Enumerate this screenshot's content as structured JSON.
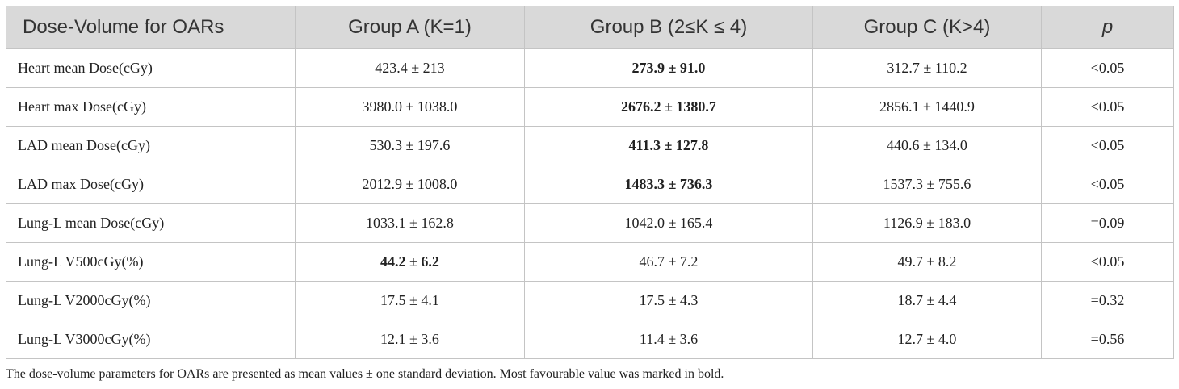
{
  "table": {
    "headers": [
      "Dose-Volume for OARs",
      "Group A (K=1)",
      "Group B (2≤K ≤ 4)",
      "Group C (K>4)",
      "p"
    ],
    "rows": [
      {
        "label": "Heart mean Dose(cGy)",
        "cells": [
          "423.4 ± 213",
          "273.9 ± 91.0",
          "312.7 ± 110.2",
          "<0.05"
        ],
        "bold_index": 1
      },
      {
        "label": "Heart max Dose(cGy)",
        "cells": [
          "3980.0 ± 1038.0",
          "2676.2 ± 1380.7",
          "2856.1 ± 1440.9",
          "<0.05"
        ],
        "bold_index": 1
      },
      {
        "label": "LAD mean Dose(cGy)",
        "cells": [
          "530.3 ± 197.6",
          "411.3 ± 127.8",
          "440.6 ± 134.0",
          "<0.05"
        ],
        "bold_index": 1
      },
      {
        "label": "LAD max Dose(cGy)",
        "cells": [
          "2012.9 ± 1008.0",
          "1483.3 ± 736.3",
          "1537.3 ± 755.6",
          "<0.05"
        ],
        "bold_index": 1
      },
      {
        "label": "Lung-L mean Dose(cGy)",
        "cells": [
          "1033.1 ± 162.8",
          "1042.0 ± 165.4",
          "1126.9 ± 183.0",
          "=0.09"
        ],
        "bold_index": null
      },
      {
        "label": "Lung-L V500cGy(%)",
        "cells": [
          "44.2 ± 6.2",
          "46.7 ± 7.2",
          "49.7 ± 8.2",
          "<0.05"
        ],
        "bold_index": 0
      },
      {
        "label": "Lung-L V2000cGy(%)",
        "cells": [
          "17.5 ± 4.1",
          "17.5 ± 4.3",
          "18.7 ± 4.4",
          "=0.32"
        ],
        "bold_index": null
      },
      {
        "label": "Lung-L V3000cGy(%)",
        "cells": [
          "12.1 ± 3.6",
          "11.4 ± 3.6",
          "12.7 ± 4.0",
          "=0.56"
        ],
        "bold_index": null
      }
    ]
  },
  "footnote": "The dose-volume parameters for OARs are presented as mean values ± one standard deviation. Most favourable value was marked in bold.",
  "colors": {
    "header_bg": "#d9d9d9",
    "border": "#c4c4c4",
    "text": "#222222"
  }
}
